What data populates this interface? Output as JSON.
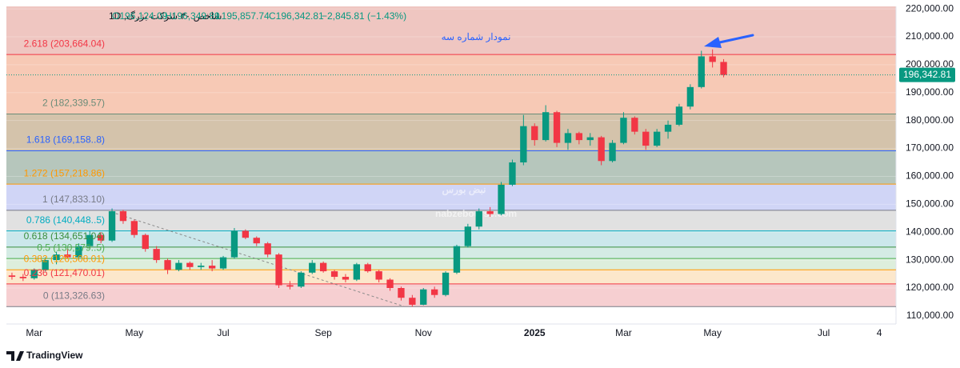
{
  "chart_data": {
    "type": "candlestick",
    "header": {
      "symbol": "شاخص ۳۰ شرکت بزرگ, 1D",
      "open": "O196,124.09",
      "high": "H196,349.89",
      "low": "L195,857.74",
      "close": "C196,342.81",
      "change": "−2,845.81 (−1.43%)"
    },
    "annotation": "نمودار شماره سه",
    "watermark": "nabzebourse.com",
    "watermark_logo": "نبض بورس",
    "brand": "TradingView",
    "up_color": "#089981",
    "down_color": "#f23645",
    "top_fill": "#ecbcb6",
    "ylim": [
      107100,
      220900
    ],
    "yticks": [
      {
        "value": 110000,
        "label": "110,000.00"
      },
      {
        "value": 120000,
        "label": "120,000.00"
      },
      {
        "value": 130000,
        "label": "130,000.00"
      },
      {
        "value": 140000,
        "label": "140,000.00"
      },
      {
        "value": 150000,
        "label": "150,000.00"
      },
      {
        "value": 160000,
        "label": "160,000.00"
      },
      {
        "value": 170000,
        "label": "170,000.00"
      },
      {
        "value": 180000,
        "label": "180,000.00"
      },
      {
        "value": 190000,
        "label": "190,000.00"
      },
      {
        "value": 200000,
        "label": "200,000.00"
      },
      {
        "value": 210000,
        "label": "210,000.00"
      },
      {
        "value": 220000,
        "label": "220,000.00"
      }
    ],
    "price_label": {
      "value": 196342.81,
      "label": "196,342.81"
    },
    "fib_levels": [
      {
        "label": "2.618 (203,664.04)",
        "value": 203664.04,
        "color": "#f23645",
        "fill": "#f6c0a8"
      },
      {
        "label": "2 (182,339.57)",
        "value": 182339.57,
        "color": "#6a8c78",
        "fill": "#cdb89c"
      },
      {
        "label": "1.618 (169,158..8)",
        "value": 169158.8,
        "color": "#2962ff",
        "fill": "#a9bcb0"
      },
      {
        "label": "1.272 (157,218.86)",
        "value": 157218.86,
        "color": "#ff9800",
        "fill": "#c8cef4"
      },
      {
        "label": "1 (147,833.10)",
        "value": 147833.1,
        "color": "#787b86",
        "fill": "#dcdcdc"
      },
      {
        "label": "0.786 (140,448..5)",
        "value": 140448.5,
        "color": "#00acc1",
        "fill": "#c2e3e8"
      },
      {
        "label": "0.618 (134,651.04)",
        "value": 134651.04,
        "color": "#388e3c",
        "fill": "#cde7df"
      },
      {
        "label": "0.5 (130,579..5)",
        "value": 130579.5,
        "color": "#4caf50",
        "fill": "#d7ebd6"
      },
      {
        "label": "0.382 (126,508.01)",
        "value": 126508.01,
        "color": "#ff9800",
        "fill": "#fbe3c2"
      },
      {
        "label": "0.236 (121,470.01)",
        "value": 121470.01,
        "color": "#f23645",
        "fill": "#f5c7c9"
      },
      {
        "label": "0 (113,326.63)",
        "value": 113326.63,
        "color": "#787b86",
        "fill": null
      }
    ],
    "categories": [
      null,
      null,
      "Mar",
      null,
      null,
      null,
      null,
      null,
      null,
      null,
      null,
      "May",
      null,
      null,
      null,
      null,
      null,
      null,
      null,
      "Jul",
      null,
      null,
      null,
      null,
      null,
      null,
      null,
      null,
      "Sep",
      null,
      null,
      null,
      null,
      null,
      null,
      null,
      null,
      "Nov",
      null,
      null,
      null,
      null,
      null,
      null,
      null,
      null,
      null,
      "2025",
      null,
      null,
      null,
      null,
      null,
      null,
      null,
      "Mar",
      null,
      null,
      null,
      null,
      null,
      null,
      null,
      "May",
      null,
      null,
      null,
      null,
      null,
      null,
      null,
      null,
      null,
      "Jul",
      null,
      null,
      null,
      null,
      "4",
      null
    ],
    "candles": [
      [
        124500,
        125500,
        123000,
        124000
      ],
      [
        124000,
        125000,
        122500,
        123500
      ],
      [
        123500,
        127000,
        123000,
        126500
      ],
      [
        126500,
        131000,
        126000,
        130000
      ],
      [
        130000,
        133000,
        128500,
        132000
      ],
      [
        132000,
        134000,
        130500,
        131000
      ],
      [
        131000,
        136000,
        130000,
        135000
      ],
      [
        135000,
        140500,
        134000,
        139000
      ],
      [
        139000,
        140000,
        136000,
        137000
      ],
      [
        137000,
        148500,
        136500,
        147500
      ],
      [
        147500,
        148000,
        143000,
        144000
      ],
      [
        144000,
        144500,
        138000,
        139000
      ],
      [
        139000,
        139500,
        133000,
        134000
      ],
      [
        134000,
        135000,
        129000,
        130000
      ],
      [
        130000,
        130500,
        125000,
        126500
      ],
      [
        126500,
        130000,
        126000,
        129000
      ],
      [
        129000,
        129500,
        126500,
        127500
      ],
      [
        127500,
        129000,
        126500,
        128000
      ],
      [
        128000,
        130000,
        126000,
        127000
      ],
      [
        127000,
        131500,
        126500,
        131000
      ],
      [
        131000,
        141500,
        130500,
        140500
      ],
      [
        140500,
        141000,
        137500,
        138000
      ],
      [
        138000,
        138500,
        135000,
        136000
      ],
      [
        136000,
        136500,
        131000,
        132000
      ],
      [
        132000,
        132500,
        120000,
        121000
      ],
      [
        121000,
        122500,
        119500,
        120500
      ],
      [
        120500,
        126000,
        120000,
        125500
      ],
      [
        125500,
        130000,
        125000,
        129000
      ],
      [
        129000,
        129500,
        125500,
        126000
      ],
      [
        126000,
        126500,
        123000,
        124000
      ],
      [
        124000,
        125000,
        122000,
        123000
      ],
      [
        123000,
        129000,
        122500,
        128500
      ],
      [
        128500,
        129000,
        125500,
        126000
      ],
      [
        126000,
        126500,
        122000,
        123000
      ],
      [
        123000,
        123500,
        119000,
        120000
      ],
      [
        120000,
        120500,
        115500,
        116500
      ],
      [
        116500,
        117500,
        113300,
        114000
      ],
      [
        114000,
        120000,
        113800,
        119500
      ],
      [
        119500,
        120500,
        116500,
        117500
      ],
      [
        117500,
        126000,
        117000,
        125500
      ],
      [
        125500,
        135500,
        125000,
        135000
      ],
      [
        135000,
        143000,
        134500,
        142000
      ],
      [
        142000,
        148500,
        141000,
        147500
      ],
      [
        147500,
        149000,
        145500,
        146500
      ],
      [
        146500,
        158000,
        146000,
        157000
      ],
      [
        157000,
        166000,
        156500,
        165000
      ],
      [
        165000,
        182000,
        164000,
        178000
      ],
      [
        178000,
        179000,
        171000,
        173000
      ],
      [
        173000,
        185500,
        172500,
        183000
      ],
      [
        183000,
        183500,
        170500,
        172000
      ],
      [
        172000,
        177000,
        169500,
        175500
      ],
      [
        175500,
        176000,
        171500,
        173000
      ],
      [
        173000,
        175500,
        171000,
        174000
      ],
      [
        174000,
        174500,
        164000,
        165500
      ],
      [
        165500,
        173000,
        165000,
        172000
      ],
      [
        172000,
        183000,
        171500,
        181000
      ],
      [
        181000,
        181500,
        175000,
        176000
      ],
      [
        176000,
        177000,
        169500,
        171000
      ],
      [
        171000,
        177000,
        170500,
        176000
      ],
      [
        176000,
        180000,
        173500,
        178500
      ],
      [
        178500,
        186000,
        178000,
        185000
      ],
      [
        185000,
        193000,
        184000,
        192000
      ],
      [
        192000,
        205000,
        191500,
        203000
      ],
      [
        203000,
        205500,
        199000,
        201000
      ],
      [
        201000,
        202000,
        195500,
        196342.81
      ],
      null,
      null,
      null,
      null,
      null,
      null,
      null,
      null,
      null,
      null,
      null,
      null,
      null,
      null,
      null
    ]
  }
}
